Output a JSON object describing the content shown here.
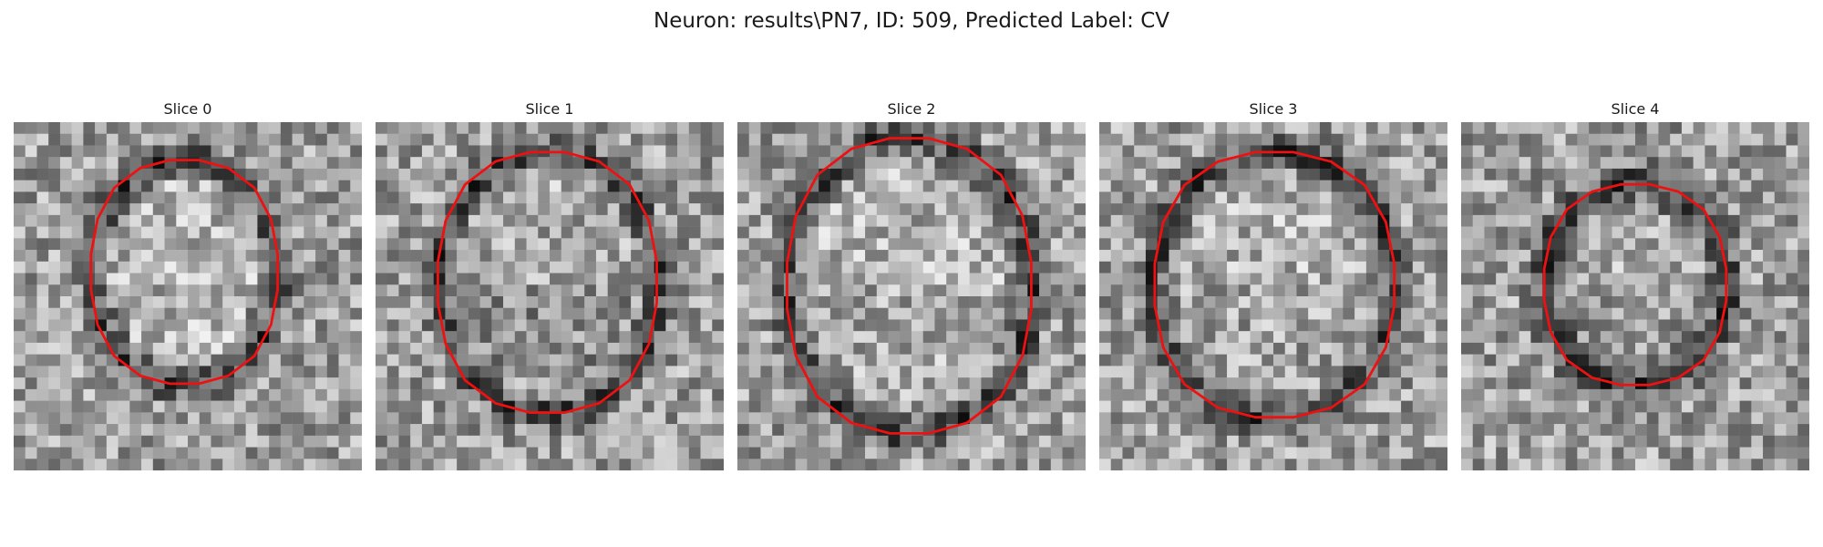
{
  "figure": {
    "title": "Neuron: results\\PN7, ID: 509, Predicted Label: CV"
  },
  "style": {
    "outline_color": "#ee1111"
  },
  "panels": [
    {
      "title": "Slice 0"
    },
    {
      "title": "Slice 1"
    },
    {
      "title": "Slice 2"
    },
    {
      "title": "Slice 3"
    },
    {
      "title": "Slice 4"
    }
  ]
}
